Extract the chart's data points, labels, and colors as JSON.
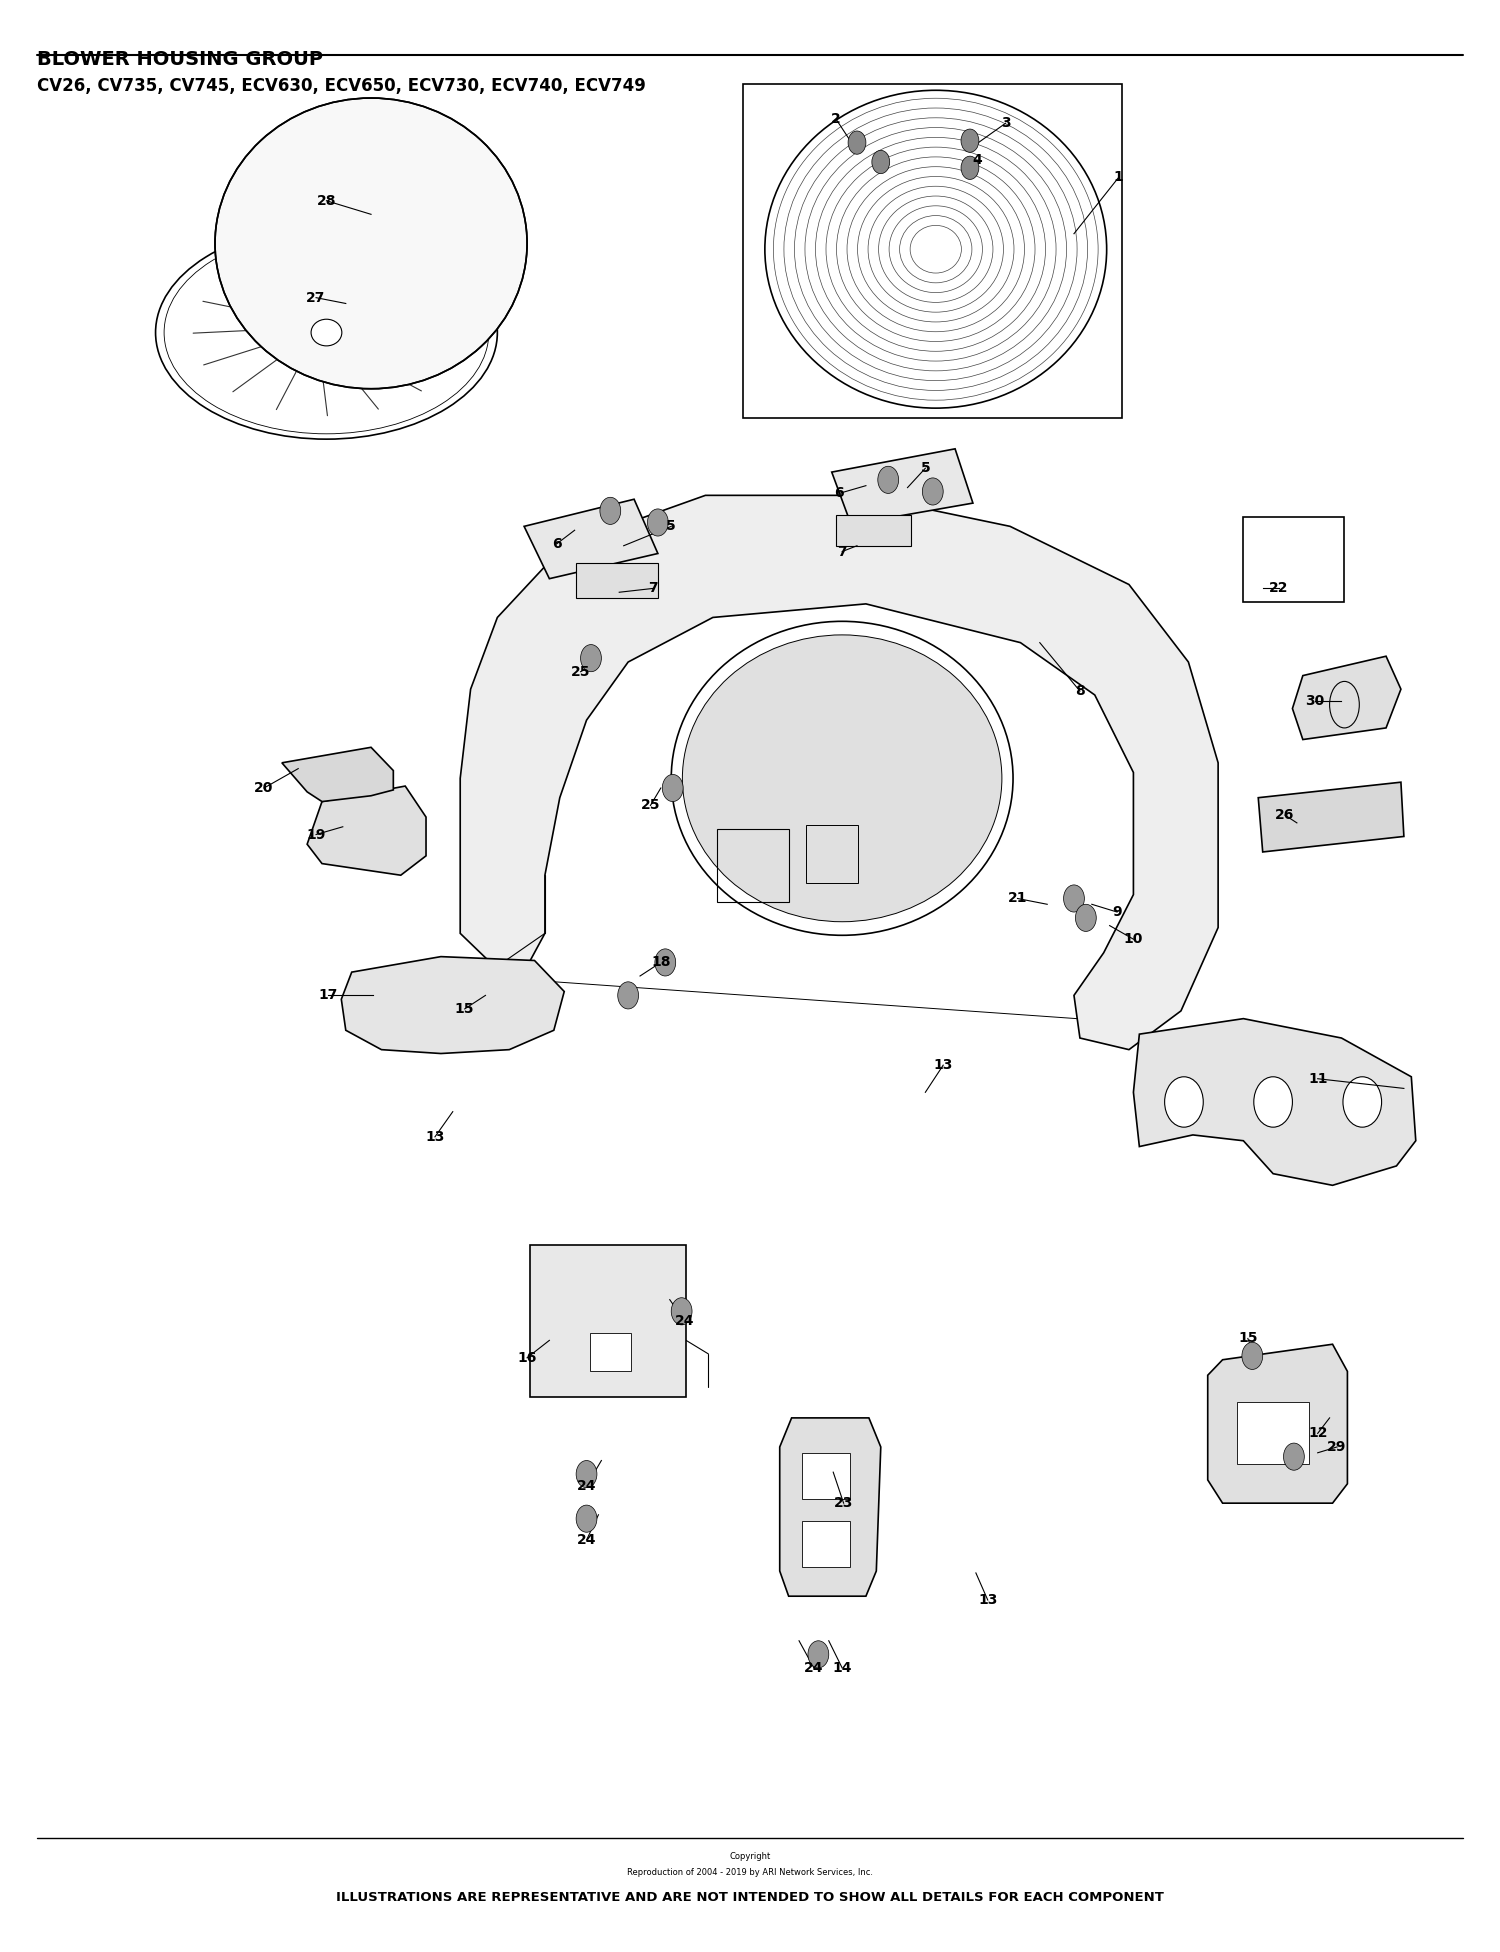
{
  "title_line1": "BLOWER HOUSING GROUP",
  "title_line2": "CV26, CV735, CV745, ECV630, ECV650, ECV730, ECV740, ECV749",
  "footer_copyright": "Copyright",
  "footer_reproduction": "Reproduction of 2004 - 2019 by ARI Network Services, Inc.",
  "footer_disclaimer": "ILLUSTRATIONS ARE REPRESENTATIVE AND ARE NOT INTENDED TO SHOW ALL DETAILS FOR EACH COMPONENT",
  "bg_color": "#ffffff",
  "line_color": "#000000"
}
